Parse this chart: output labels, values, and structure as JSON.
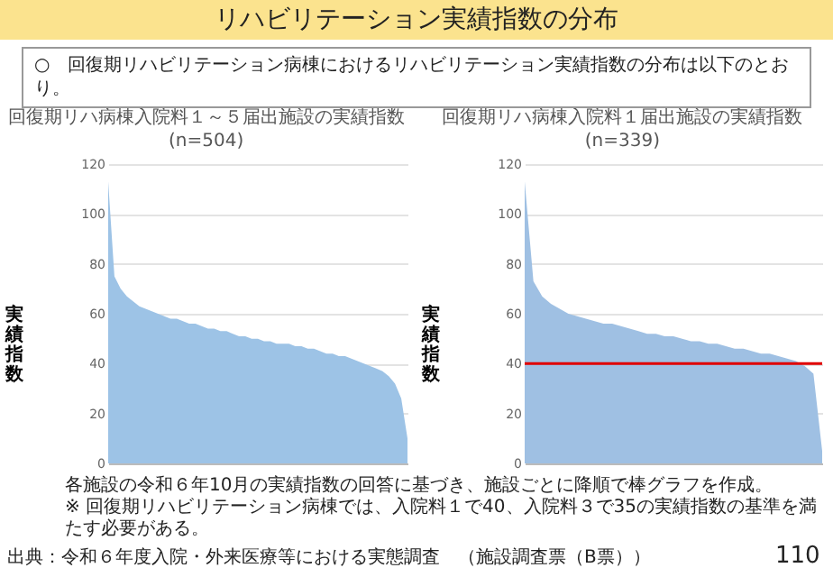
{
  "chart_data": [
    {
      "type": "area",
      "title": "回復期リハ病棟入院料１～５届出施設の実績指数",
      "subtitle": "(n=504)",
      "ylabel": "実績指数",
      "ylim": [
        0,
        120
      ],
      "yticks": [
        0,
        20,
        40,
        60,
        80,
        100,
        120
      ],
      "grid": "y",
      "tick_labels": "y",
      "categories": [
        null,
        null,
        null,
        null,
        null,
        null,
        null,
        null,
        null,
        null,
        null,
        null,
        null,
        null,
        null,
        null,
        null,
        null,
        null,
        null,
        null,
        null,
        null,
        null,
        null,
        null,
        null,
        null,
        null,
        null,
        null,
        null,
        null,
        null,
        null,
        null,
        null,
        null,
        null,
        null,
        null,
        null,
        null,
        null,
        null,
        null,
        null,
        null,
        null
      ],
      "series": [
        {
          "color": "#9dc3e6",
          "values": [
            113,
            75,
            70,
            67,
            65,
            63,
            62,
            61,
            60,
            59,
            58,
            58,
            57,
            56,
            56,
            55,
            54,
            54,
            53,
            53,
            52,
            51,
            51,
            50,
            50,
            49,
            49,
            48,
            48,
            48,
            47,
            47,
            46,
            46,
            45,
            44,
            44,
            43,
            43,
            42,
            41,
            40,
            39,
            38,
            37,
            35,
            32,
            26,
            10
          ]
        }
      ],
      "annotations": [
        "リハビリテーション実績指数の分布",
        "○　回復期リハビリテーション病棟におけるリハビリテーション実績指数の分布は以下のとおり。",
        "各施設の令和６年10月の実績指数の回答に基づき、施設ごとに降順で棒グラフを作成。",
        "※ 回復期リハビリテーション病棟では、入院料１で40、入院料３で35の実績指数の基準を満たす必要がある。",
        "出典：令和６年度入院・外来医療等における実態調査　（施設調査票（B票））",
        "110"
      ]
    },
    {
      "type": "area",
      "title": "回復期リハ病棟入院料１届出施設の実績指数",
      "subtitle": "(n=339)",
      "ylabel": "実績指数",
      "ylim": [
        0,
        120
      ],
      "yticks": [
        0,
        20,
        40,
        60,
        80,
        100,
        120
      ],
      "grid": "y",
      "tick_labels": "y",
      "categories": [
        null,
        null,
        null,
        null,
        null,
        null,
        null,
        null,
        null,
        null,
        null,
        null,
        null,
        null,
        null,
        null,
        null,
        null,
        null,
        null,
        null,
        null,
        null,
        null,
        null,
        null,
        null,
        null,
        null,
        null,
        null,
        null,
        null,
        null,
        null
      ],
      "series": [
        {
          "color": "#9fc0e3",
          "values": [
            113,
            73,
            67,
            64,
            62,
            60,
            59,
            58,
            57,
            56,
            56,
            55,
            54,
            53,
            52,
            52,
            51,
            51,
            50,
            49,
            49,
            48,
            48,
            47,
            46,
            46,
            45,
            44,
            44,
            43,
            42,
            41,
            39,
            36,
            5
          ]
        }
      ],
      "ref_lines": [
        {
          "axis": "y",
          "value": 40,
          "color": "#e00000"
        }
      ]
    }
  ]
}
